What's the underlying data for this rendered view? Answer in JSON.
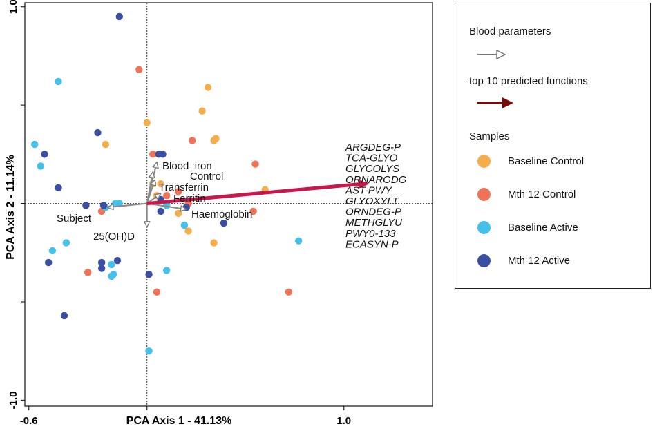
{
  "chart_data": {
    "type": "scatter",
    "title": "",
    "xlabel": "PCA Axis 1 - 41.13%",
    "ylabel": "PCA Axis 2 - 11.14%",
    "xlim": [
      -0.62,
      1.45
    ],
    "ylim": [
      -1.03,
      1.02
    ],
    "x_tick_labels": [
      {
        "value": -0.6,
        "label": "-0.6"
      },
      {
        "value": 1.0,
        "label": "1.0"
      }
    ],
    "y_tick_labels": [
      {
        "value": 1.0,
        "label": "1.0"
      },
      {
        "value": -1.0,
        "label": "-1.0"
      }
    ],
    "y_minor_ticks": [
      0.5,
      0.0,
      -0.5
    ],
    "x_minor_ticks": [
      0.0
    ],
    "reference_lines": {
      "x": 0,
      "y": 0
    },
    "groups": [
      {
        "name": "Baseline Control",
        "color": "#F5AD4A",
        "points": [
          [
            0.0,
            0.41
          ],
          [
            0.31,
            0.59
          ],
          [
            0.28,
            0.47
          ],
          [
            0.35,
            0.33
          ],
          [
            0.34,
            0.32
          ],
          [
            -0.21,
            0.3
          ],
          [
            0.6,
            0.07
          ],
          [
            0.07,
            0.1
          ],
          [
            0.16,
            -0.05
          ],
          [
            0.21,
            -0.14
          ],
          [
            0.34,
            -0.2
          ],
          [
            0.03,
            0.1
          ],
          [
            0.05,
            0.04
          ]
        ]
      },
      {
        "name": "Mth 12 Control",
        "color": "#EE7358",
        "points": [
          [
            -0.04,
            0.68
          ],
          [
            0.03,
            0.25
          ],
          [
            0.23,
            0.32
          ],
          [
            0.16,
            0.06
          ],
          [
            0.1,
            0.04
          ],
          [
            0.55,
            0.2
          ],
          [
            0.54,
            -0.04
          ],
          [
            0.72,
            -0.45
          ],
          [
            0.05,
            -0.45
          ],
          [
            -0.3,
            -0.35
          ],
          [
            -0.23,
            -0.04
          ],
          [
            0.21,
            0.0
          ]
        ]
      },
      {
        "name": "Baseline Active",
        "color": "#44C0EA",
        "points": [
          [
            -0.45,
            0.62
          ],
          [
            -0.57,
            0.3
          ],
          [
            -0.54,
            0.19
          ],
          [
            -0.48,
            -0.24
          ],
          [
            -0.41,
            -0.2
          ],
          [
            -0.18,
            -0.31
          ],
          [
            -0.17,
            -0.36
          ],
          [
            -0.18,
            -0.37
          ],
          [
            -0.16,
            0.0
          ],
          [
            -0.14,
            0.0
          ],
          [
            -0.21,
            -0.02
          ],
          [
            0.1,
            -0.01
          ],
          [
            0.19,
            -0.11
          ],
          [
            0.1,
            -0.34
          ],
          [
            0.01,
            -0.75
          ],
          [
            0.77,
            -0.19
          ]
        ]
      },
      {
        "name": "Mth 12 Active",
        "color": "#3A4FA3",
        "points": [
          [
            -0.14,
            0.95
          ],
          [
            -0.25,
            0.36
          ],
          [
            -0.52,
            0.25
          ],
          [
            -0.45,
            0.08
          ],
          [
            -0.31,
            -0.01
          ],
          [
            -0.22,
            -0.01
          ],
          [
            -0.23,
            -0.3
          ],
          [
            -0.15,
            -0.29
          ],
          [
            -0.23,
            -0.33
          ],
          [
            -0.5,
            -0.3
          ],
          [
            -0.42,
            -0.57
          ],
          [
            0.06,
            0.25
          ],
          [
            0.08,
            0.25
          ],
          [
            0.07,
            0.02
          ],
          [
            0.2,
            -0.02
          ],
          [
            0.39,
            -0.1
          ],
          [
            0.01,
            -0.36
          ],
          [
            0.07,
            -0.04
          ]
        ]
      }
    ],
    "blood_parameter_vectors": [
      {
        "label": "Blood_iron",
        "end": [
          0.05,
          0.21
        ]
      },
      {
        "label": "Control",
        "end": [
          0.03,
          0.16
        ]
      },
      {
        "label": "Transferrin",
        "end": [
          0.04,
          0.12
        ]
      },
      {
        "label": "Ferritin",
        "end": [
          0.07,
          0.05
        ]
      },
      {
        "label": "Haemoglobin",
        "end": [
          0.2,
          -0.03
        ]
      },
      {
        "label": "Subject",
        "end": [
          -0.2,
          -0.02
        ]
      },
      {
        "label": "25(OH)D",
        "end": [
          0.0,
          -0.12
        ]
      }
    ],
    "function_vector": {
      "end": [
        1.13,
        0.1
      ],
      "color": "#C8174A"
    },
    "function_labels": [
      "ARGDEG-P",
      "TCA-GLYO",
      "GLYCOLYS",
      "ORNARGDG",
      "AST-PWY",
      "GLYOXYLT",
      "ORNDEG-P",
      "METHGLYU",
      "PWY0-133",
      "ECASYN-P"
    ],
    "legend": {
      "position": "right",
      "blood_parameters_title": "Blood parameters",
      "functions_title": "top 10 predicted functions",
      "functions_arrow_color": "#7A0A0A",
      "samples_title": "Samples",
      "entries": [
        {
          "label": "Baseline Control",
          "color": "#F5AD4A"
        },
        {
          "label": "Mth 12 Control",
          "color": "#EE7358"
        },
        {
          "label": "Baseline Active",
          "color": "#44C0EA"
        },
        {
          "label": "Mth 12 Active",
          "color": "#3A4FA3"
        }
      ]
    }
  }
}
